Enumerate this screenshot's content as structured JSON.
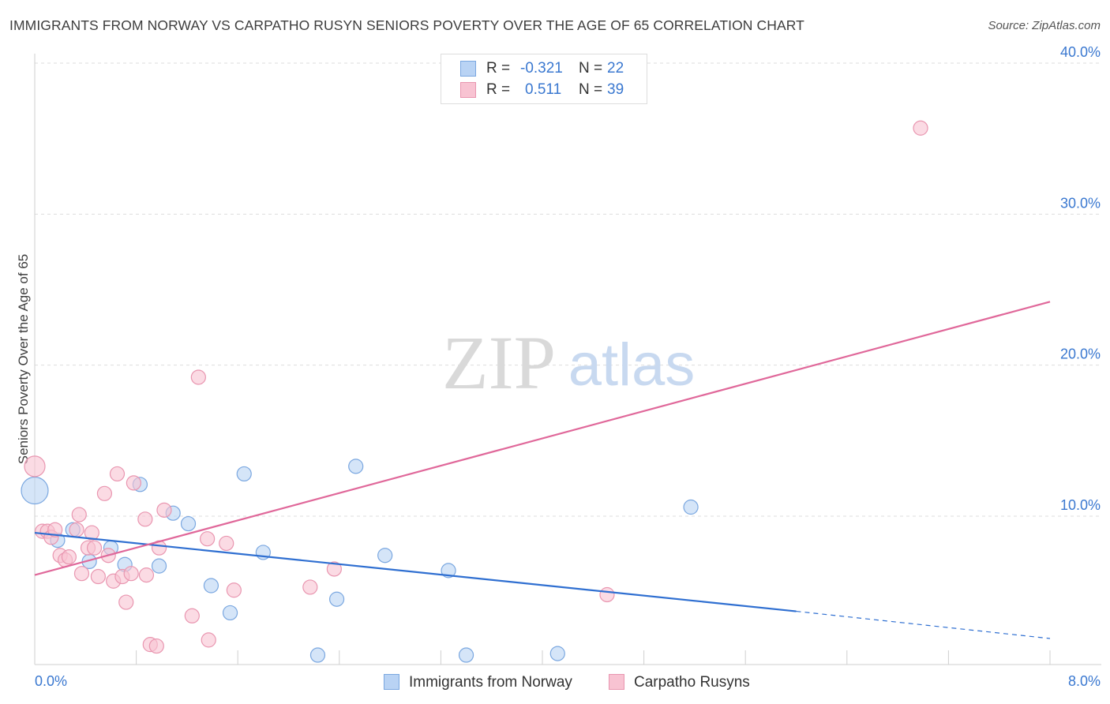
{
  "title": "IMMIGRANTS FROM NORWAY VS CARPATHO RUSYN SENIORS POVERTY OVER THE AGE OF 65 CORRELATION CHART",
  "source": "Source: ZipAtlas.com",
  "watermark": {
    "zip": "ZIP",
    "atlas": "atlas"
  },
  "colors": {
    "blue_fill": "#b9d3f4",
    "blue_stroke": "#7aa7e0",
    "blue_line": "#2f6fd1",
    "pink_fill": "#f8c3d2",
    "pink_stroke": "#e996b0",
    "pink_line": "#e0689a",
    "tick_text": "#3a78d0",
    "grid": "#dddddd"
  },
  "legend": {
    "rows": [
      {
        "r_label": "R =",
        "r_value": "-0.321",
        "n_label": "N =",
        "n_value": "22"
      },
      {
        "r_label": "R =",
        "r_value": "0.511",
        "n_label": "N =",
        "n_value": "39"
      }
    ]
  },
  "bottom_legend": {
    "series1": "Immigrants from Norway",
    "series2": "Carpatho Rusyns"
  },
  "chart_data": {
    "type": "scatter",
    "title": "IMMIGRANTS FROM NORWAY VS CARPATHO RUSYN SENIORS POVERTY OVER THE AGE OF 65 CORRELATION CHART",
    "xlabel": "",
    "ylabel": "Seniors Poverty Over the Age of 65",
    "xlim": [
      0,
      8
    ],
    "ylim": [
      0,
      42
    ],
    "x_tick_labels": [
      "0.0%",
      "8.0%"
    ],
    "y_ticks": [
      10,
      20,
      30,
      40
    ],
    "y_tick_labels": [
      "10.0%",
      "20.0%",
      "30.0%",
      "40.0%"
    ],
    "series": [
      {
        "name": "Immigrants from Norway",
        "R": -0.321,
        "N": 22,
        "trend": {
          "x0": 0,
          "y0": 8.9,
          "x1": 6.0,
          "y1": 3.7,
          "dash_to_x": 8.0,
          "dash_to_y": 1.9
        },
        "points": [
          {
            "x": 0.0,
            "y": 11.7,
            "s": 3
          },
          {
            "x": 0.18,
            "y": 8.4,
            "s": 1
          },
          {
            "x": 0.3,
            "y": 9.1,
            "s": 1
          },
          {
            "x": 0.43,
            "y": 7.0,
            "s": 1
          },
          {
            "x": 0.6,
            "y": 7.9,
            "s": 1
          },
          {
            "x": 0.71,
            "y": 6.8,
            "s": 1
          },
          {
            "x": 0.83,
            "y": 12.1,
            "s": 1
          },
          {
            "x": 0.98,
            "y": 6.7,
            "s": 1
          },
          {
            "x": 1.09,
            "y": 10.2,
            "s": 1
          },
          {
            "x": 1.21,
            "y": 9.5,
            "s": 1
          },
          {
            "x": 1.39,
            "y": 5.4,
            "s": 1
          },
          {
            "x": 1.54,
            "y": 3.6,
            "s": 1
          },
          {
            "x": 1.65,
            "y": 12.8,
            "s": 1
          },
          {
            "x": 1.8,
            "y": 7.6,
            "s": 1
          },
          {
            "x": 2.23,
            "y": 0.8,
            "s": 1
          },
          {
            "x": 2.38,
            "y": 4.5,
            "s": 1
          },
          {
            "x": 2.53,
            "y": 13.3,
            "s": 1
          },
          {
            "x": 2.76,
            "y": 7.4,
            "s": 1
          },
          {
            "x": 3.26,
            "y": 6.4,
            "s": 1
          },
          {
            "x": 3.4,
            "y": 0.8,
            "s": 1
          },
          {
            "x": 4.12,
            "y": 0.9,
            "s": 1
          },
          {
            "x": 5.17,
            "y": 10.6,
            "s": 1
          }
        ]
      },
      {
        "name": "Carpatho Rusyns",
        "R": 0.511,
        "N": 39,
        "trend": {
          "x0": 0,
          "y0": 6.1,
          "x1": 8.0,
          "y1": 24.2
        },
        "points": [
          {
            "x": 0.0,
            "y": 13.3,
            "s": 2
          },
          {
            "x": 0.06,
            "y": 9.0,
            "s": 1
          },
          {
            "x": 0.1,
            "y": 9.0,
            "s": 1
          },
          {
            "x": 0.13,
            "y": 8.6,
            "s": 1
          },
          {
            "x": 0.16,
            "y": 9.1,
            "s": 1
          },
          {
            "x": 0.2,
            "y": 7.4,
            "s": 1
          },
          {
            "x": 0.24,
            "y": 7.1,
            "s": 1
          },
          {
            "x": 0.27,
            "y": 7.3,
            "s": 1
          },
          {
            "x": 0.33,
            "y": 9.1,
            "s": 1
          },
          {
            "x": 0.35,
            "y": 10.1,
            "s": 1
          },
          {
            "x": 0.37,
            "y": 6.2,
            "s": 1
          },
          {
            "x": 0.42,
            "y": 7.9,
            "s": 1
          },
          {
            "x": 0.45,
            "y": 8.9,
            "s": 1
          },
          {
            "x": 0.47,
            "y": 7.9,
            "s": 1
          },
          {
            "x": 0.5,
            "y": 6.0,
            "s": 1
          },
          {
            "x": 0.55,
            "y": 11.5,
            "s": 1
          },
          {
            "x": 0.58,
            "y": 7.4,
            "s": 1
          },
          {
            "x": 0.62,
            "y": 5.7,
            "s": 1
          },
          {
            "x": 0.65,
            "y": 12.8,
            "s": 1
          },
          {
            "x": 0.69,
            "y": 6.0,
            "s": 1
          },
          {
            "x": 0.72,
            "y": 4.3,
            "s": 1
          },
          {
            "x": 0.76,
            "y": 6.2,
            "s": 1
          },
          {
            "x": 0.78,
            "y": 12.2,
            "s": 1
          },
          {
            "x": 0.87,
            "y": 9.8,
            "s": 1
          },
          {
            "x": 0.88,
            "y": 6.1,
            "s": 1
          },
          {
            "x": 0.91,
            "y": 1.5,
            "s": 1
          },
          {
            "x": 0.96,
            "y": 1.4,
            "s": 1
          },
          {
            "x": 0.98,
            "y": 7.9,
            "s": 1
          },
          {
            "x": 1.02,
            "y": 10.4,
            "s": 1
          },
          {
            "x": 1.24,
            "y": 3.4,
            "s": 1
          },
          {
            "x": 1.29,
            "y": 19.2,
            "s": 1
          },
          {
            "x": 1.36,
            "y": 8.5,
            "s": 1
          },
          {
            "x": 1.37,
            "y": 1.8,
            "s": 1
          },
          {
            "x": 1.51,
            "y": 8.2,
            "s": 1
          },
          {
            "x": 1.57,
            "y": 5.1,
            "s": 1
          },
          {
            "x": 2.17,
            "y": 5.3,
            "s": 1
          },
          {
            "x": 2.36,
            "y": 6.5,
            "s": 1
          },
          {
            "x": 4.51,
            "y": 4.8,
            "s": 1
          },
          {
            "x": 6.98,
            "y": 35.7,
            "s": 1
          }
        ]
      }
    ]
  }
}
